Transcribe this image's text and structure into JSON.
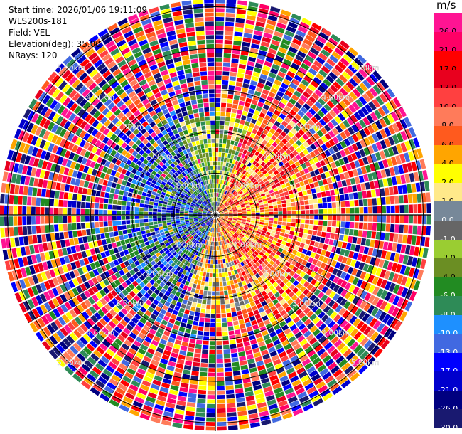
{
  "header": {
    "start_time": "Start time: 2026/01/06 19:11:09",
    "instrument": "WLS200s-181",
    "field": "Field: VEL",
    "elevation": "Elevation(deg): 35.00",
    "nrays": "NRays: 120"
  },
  "colorbar": {
    "unit": "m/s",
    "entries": [
      {
        "label": "26.0",
        "color": "#ff1493"
      },
      {
        "label": "21.0",
        "color": "#ff0066"
      },
      {
        "label": "17.0",
        "color": "#ff0000"
      },
      {
        "label": "13.0",
        "color": "#e8001e"
      },
      {
        "label": "10.0",
        "color": "#ff4040"
      },
      {
        "label": "8.0",
        "color": "#ff7b5a"
      },
      {
        "label": "6.0",
        "color": "#ff5a1e"
      },
      {
        "label": "4.0",
        "color": "#ffa500"
      },
      {
        "label": "2.0",
        "color": "#ffff00"
      },
      {
        "label": "1.0",
        "color": "#ffe98a"
      },
      {
        "label": "0.0",
        "color": "#778899"
      },
      {
        "label": "-1.0",
        "color": "#666666"
      },
      {
        "label": "-2.0",
        "color": "#9acd32"
      },
      {
        "label": "-4.0",
        "color": "#6b8e23"
      },
      {
        "label": "-6.0",
        "color": "#228b22"
      },
      {
        "label": "-8.0",
        "color": "#2e8b57"
      },
      {
        "label": "-10.0",
        "color": "#1e90ff"
      },
      {
        "label": "-13.0",
        "color": "#4169e1"
      },
      {
        "label": "-17.0",
        "color": "#0000ff"
      },
      {
        "label": "-21.0",
        "color": "#0000cd"
      },
      {
        "label": "-26.0",
        "color": "#000080"
      },
      {
        "label": "-30.0",
        "color": "#191970"
      }
    ]
  },
  "range_rings": [
    {
      "label": "1.00km",
      "value_km": 1
    },
    {
      "label": "2.00km",
      "value_km": 2
    },
    {
      "label": "3.00km",
      "value_km": 3
    },
    {
      "label": "4.00km",
      "value_km": 4
    },
    {
      "label": "5.00km",
      "value_km": 5
    }
  ]
}
